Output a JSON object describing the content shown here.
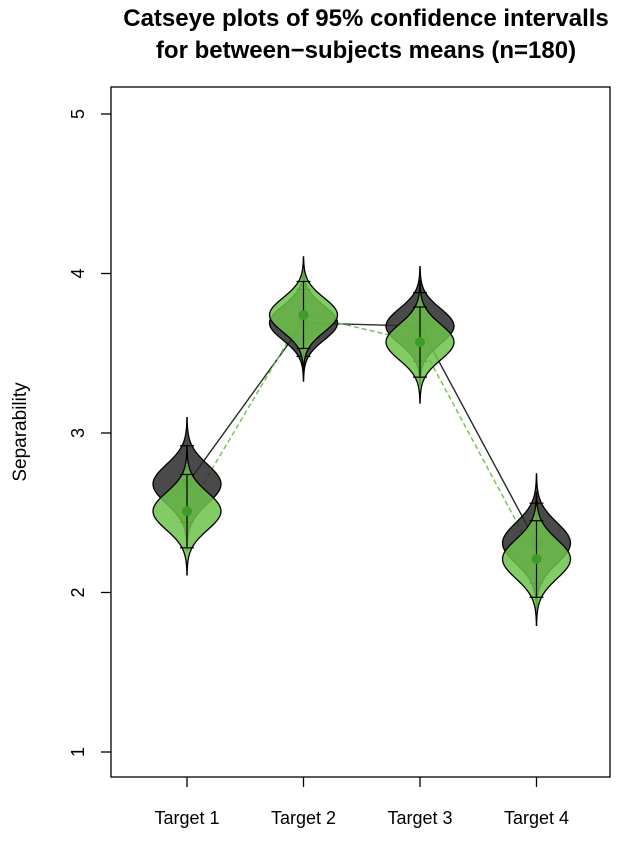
{
  "chart_data": {
    "type": "catseye",
    "title_lines": [
      "Catseye plots of 95% confidence intervalls",
      "for between−subjects means (n=180)"
    ],
    "xlabel": "",
    "ylabel": "Separability",
    "ylim": [
      1,
      5
    ],
    "yticks": [
      1,
      2,
      3,
      4,
      5
    ],
    "categories": [
      "Target 1",
      "Target 2",
      "Target 3",
      "Target 4"
    ],
    "series": [
      {
        "color": "#2a2a2a",
        "marker": "square",
        "line_style": "solid",
        "means": [
          2.68,
          3.69,
          3.67,
          2.31
        ],
        "ci_low": [
          2.44,
          3.48,
          3.45,
          2.06
        ],
        "ci_high": [
          2.92,
          3.9,
          3.88,
          2.56
        ]
      },
      {
        "color": "#6cc24a",
        "marker": "circle",
        "line_style": "dashed",
        "means": [
          2.51,
          3.74,
          3.57,
          2.21
        ],
        "ci_low": [
          2.28,
          3.53,
          3.35,
          1.97
        ],
        "ci_high": [
          2.74,
          3.95,
          3.79,
          2.45
        ]
      }
    ]
  }
}
